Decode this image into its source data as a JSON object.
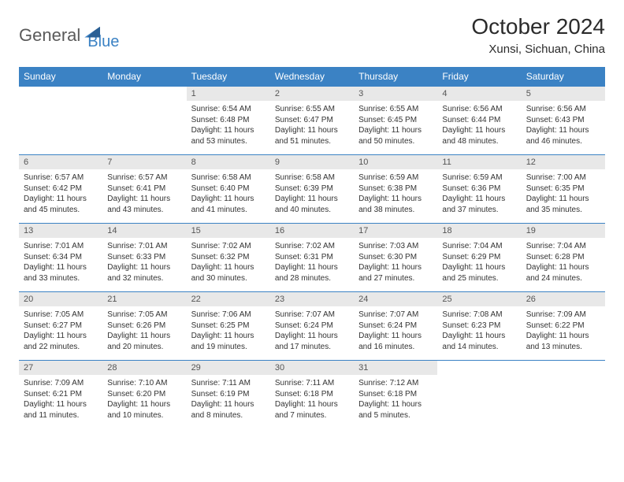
{
  "logo": {
    "part1": "General",
    "part2": "Blue"
  },
  "title": "October 2024",
  "location": "Xunsi, Sichuan, China",
  "colors": {
    "header_bg": "#3b82c4",
    "header_text": "#ffffff",
    "daynum_bg": "#e8e8e8",
    "daynum_text": "#555555",
    "body_text": "#333333",
    "rule": "#3b82c4",
    "page_bg": "#ffffff"
  },
  "typography": {
    "title_fontsize": 28,
    "location_fontsize": 15,
    "header_fontsize": 12,
    "daynum_fontsize": 11,
    "body_fontsize": 10
  },
  "day_headers": [
    "Sunday",
    "Monday",
    "Tuesday",
    "Wednesday",
    "Thursday",
    "Friday",
    "Saturday"
  ],
  "weeks": [
    [
      {
        "num": "",
        "lines": []
      },
      {
        "num": "",
        "lines": []
      },
      {
        "num": "1",
        "lines": [
          "Sunrise: 6:54 AM",
          "Sunset: 6:48 PM",
          "Daylight: 11 hours and 53 minutes."
        ]
      },
      {
        "num": "2",
        "lines": [
          "Sunrise: 6:55 AM",
          "Sunset: 6:47 PM",
          "Daylight: 11 hours and 51 minutes."
        ]
      },
      {
        "num": "3",
        "lines": [
          "Sunrise: 6:55 AM",
          "Sunset: 6:45 PM",
          "Daylight: 11 hours and 50 minutes."
        ]
      },
      {
        "num": "4",
        "lines": [
          "Sunrise: 6:56 AM",
          "Sunset: 6:44 PM",
          "Daylight: 11 hours and 48 minutes."
        ]
      },
      {
        "num": "5",
        "lines": [
          "Sunrise: 6:56 AM",
          "Sunset: 6:43 PM",
          "Daylight: 11 hours and 46 minutes."
        ]
      }
    ],
    [
      {
        "num": "6",
        "lines": [
          "Sunrise: 6:57 AM",
          "Sunset: 6:42 PM",
          "Daylight: 11 hours and 45 minutes."
        ]
      },
      {
        "num": "7",
        "lines": [
          "Sunrise: 6:57 AM",
          "Sunset: 6:41 PM",
          "Daylight: 11 hours and 43 minutes."
        ]
      },
      {
        "num": "8",
        "lines": [
          "Sunrise: 6:58 AM",
          "Sunset: 6:40 PM",
          "Daylight: 11 hours and 41 minutes."
        ]
      },
      {
        "num": "9",
        "lines": [
          "Sunrise: 6:58 AM",
          "Sunset: 6:39 PM",
          "Daylight: 11 hours and 40 minutes."
        ]
      },
      {
        "num": "10",
        "lines": [
          "Sunrise: 6:59 AM",
          "Sunset: 6:38 PM",
          "Daylight: 11 hours and 38 minutes."
        ]
      },
      {
        "num": "11",
        "lines": [
          "Sunrise: 6:59 AM",
          "Sunset: 6:36 PM",
          "Daylight: 11 hours and 37 minutes."
        ]
      },
      {
        "num": "12",
        "lines": [
          "Sunrise: 7:00 AM",
          "Sunset: 6:35 PM",
          "Daylight: 11 hours and 35 minutes."
        ]
      }
    ],
    [
      {
        "num": "13",
        "lines": [
          "Sunrise: 7:01 AM",
          "Sunset: 6:34 PM",
          "Daylight: 11 hours and 33 minutes."
        ]
      },
      {
        "num": "14",
        "lines": [
          "Sunrise: 7:01 AM",
          "Sunset: 6:33 PM",
          "Daylight: 11 hours and 32 minutes."
        ]
      },
      {
        "num": "15",
        "lines": [
          "Sunrise: 7:02 AM",
          "Sunset: 6:32 PM",
          "Daylight: 11 hours and 30 minutes."
        ]
      },
      {
        "num": "16",
        "lines": [
          "Sunrise: 7:02 AM",
          "Sunset: 6:31 PM",
          "Daylight: 11 hours and 28 minutes."
        ]
      },
      {
        "num": "17",
        "lines": [
          "Sunrise: 7:03 AM",
          "Sunset: 6:30 PM",
          "Daylight: 11 hours and 27 minutes."
        ]
      },
      {
        "num": "18",
        "lines": [
          "Sunrise: 7:04 AM",
          "Sunset: 6:29 PM",
          "Daylight: 11 hours and 25 minutes."
        ]
      },
      {
        "num": "19",
        "lines": [
          "Sunrise: 7:04 AM",
          "Sunset: 6:28 PM",
          "Daylight: 11 hours and 24 minutes."
        ]
      }
    ],
    [
      {
        "num": "20",
        "lines": [
          "Sunrise: 7:05 AM",
          "Sunset: 6:27 PM",
          "Daylight: 11 hours and 22 minutes."
        ]
      },
      {
        "num": "21",
        "lines": [
          "Sunrise: 7:05 AM",
          "Sunset: 6:26 PM",
          "Daylight: 11 hours and 20 minutes."
        ]
      },
      {
        "num": "22",
        "lines": [
          "Sunrise: 7:06 AM",
          "Sunset: 6:25 PM",
          "Daylight: 11 hours and 19 minutes."
        ]
      },
      {
        "num": "23",
        "lines": [
          "Sunrise: 7:07 AM",
          "Sunset: 6:24 PM",
          "Daylight: 11 hours and 17 minutes."
        ]
      },
      {
        "num": "24",
        "lines": [
          "Sunrise: 7:07 AM",
          "Sunset: 6:24 PM",
          "Daylight: 11 hours and 16 minutes."
        ]
      },
      {
        "num": "25",
        "lines": [
          "Sunrise: 7:08 AM",
          "Sunset: 6:23 PM",
          "Daylight: 11 hours and 14 minutes."
        ]
      },
      {
        "num": "26",
        "lines": [
          "Sunrise: 7:09 AM",
          "Sunset: 6:22 PM",
          "Daylight: 11 hours and 13 minutes."
        ]
      }
    ],
    [
      {
        "num": "27",
        "lines": [
          "Sunrise: 7:09 AM",
          "Sunset: 6:21 PM",
          "Daylight: 11 hours and 11 minutes."
        ]
      },
      {
        "num": "28",
        "lines": [
          "Sunrise: 7:10 AM",
          "Sunset: 6:20 PM",
          "Daylight: 11 hours and 10 minutes."
        ]
      },
      {
        "num": "29",
        "lines": [
          "Sunrise: 7:11 AM",
          "Sunset: 6:19 PM",
          "Daylight: 11 hours and 8 minutes."
        ]
      },
      {
        "num": "30",
        "lines": [
          "Sunrise: 7:11 AM",
          "Sunset: 6:18 PM",
          "Daylight: 11 hours and 7 minutes."
        ]
      },
      {
        "num": "31",
        "lines": [
          "Sunrise: 7:12 AM",
          "Sunset: 6:18 PM",
          "Daylight: 11 hours and 5 minutes."
        ]
      },
      {
        "num": "",
        "lines": []
      },
      {
        "num": "",
        "lines": []
      }
    ]
  ]
}
